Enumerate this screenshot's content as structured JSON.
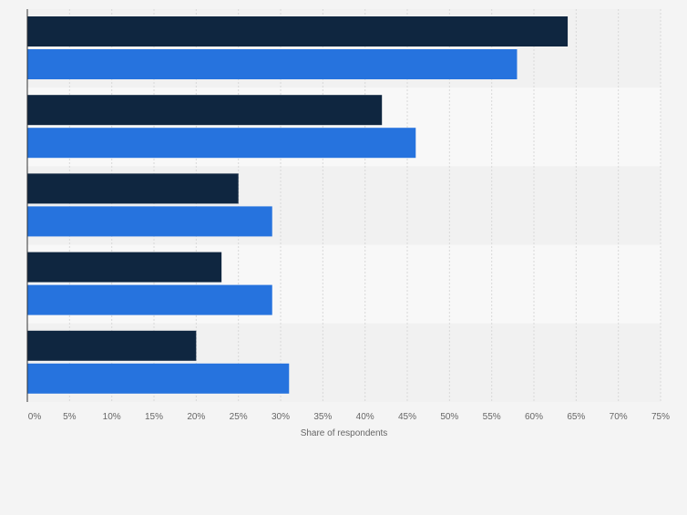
{
  "chart_data": {
    "type": "bar",
    "orientation": "horizontal",
    "categories": [
      "",
      "",
      "",
      "",
      ""
    ],
    "series": [
      {
        "values": [
          64,
          42,
          25,
          23,
          20
        ]
      },
      {
        "values": [
          58,
          46,
          29,
          29,
          31
        ]
      }
    ],
    "xlabel": "Share of respondents",
    "ylabel": "",
    "xlim": [
      0,
      75
    ],
    "tick_step": 5,
    "tick_suffix": "%",
    "grid": true,
    "legend": "none",
    "colors": {
      "series": [
        "#0f2640",
        "#2673de"
      ],
      "band_dark": "#f1f1f1",
      "band_light": "#f8f8f8",
      "grid": "#d9d9d9",
      "axis": "#333333",
      "tick_text": "#666666"
    }
  }
}
